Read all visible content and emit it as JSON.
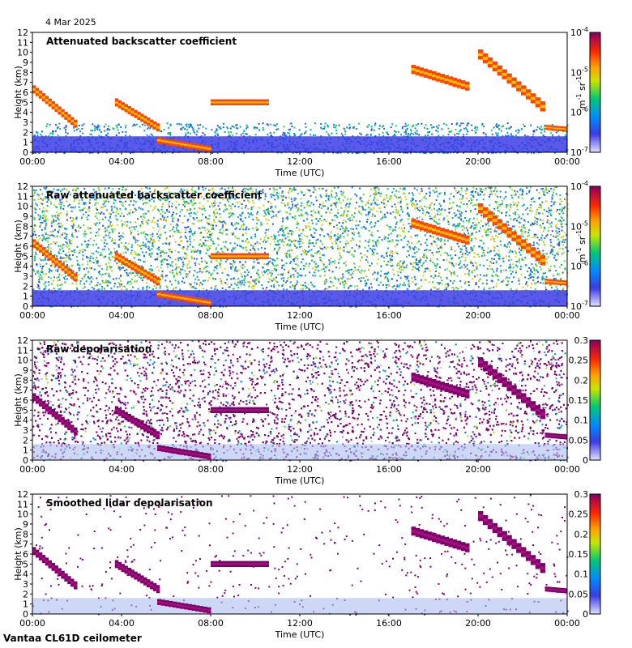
{
  "header": {
    "date": "4 Mar 2025"
  },
  "footer": {
    "station": "Vantaa CL61D ceilometer"
  },
  "chart_data": [
    {
      "type": "heatmap",
      "title": "Attenuated backscatter coefficient",
      "xlabel": "Time (UTC)",
      "ylabel": "Height (km)",
      "xticks": [
        "00:00",
        "04:00",
        "08:00",
        "12:00",
        "16:00",
        "20:00",
        "00:00"
      ],
      "yticks": [
        0,
        1,
        2,
        3,
        4,
        5,
        6,
        7,
        8,
        9,
        10,
        11,
        12
      ],
      "ylim": [
        0,
        12
      ],
      "colorbar": {
        "scale": "log",
        "labels": [
          "10-7",
          "10-6",
          "10-5",
          "10-4"
        ],
        "exponents": [
          -7,
          -6,
          -5,
          -4
        ],
        "unit_base": "m",
        "unit_exp1": "-1",
        "unit_mid": " sr",
        "unit_exp2": "-1"
      },
      "noise": "low",
      "bands": [
        {
          "name": "boundary-layer aerosol",
          "t0": 0,
          "t1": 24,
          "h0": 0,
          "h1": 1.6,
          "level": 0.15
        }
      ],
      "features": [
        {
          "t0": 0.0,
          "t1": 2.0,
          "h_start": 6.3,
          "h_end": 2.6,
          "thick": 0.8
        },
        {
          "t0": 3.7,
          "t1": 5.7,
          "h_start": 5.0,
          "h_end": 2.3,
          "thick": 0.8
        },
        {
          "t0": 5.6,
          "t1": 8.0,
          "h_start": 1.2,
          "h_end": 0.3,
          "thick": 0.6
        },
        {
          "t0": 8.0,
          "t1": 10.6,
          "h_start": 5.0,
          "h_end": 5.0,
          "thick": 0.6
        },
        {
          "t0": 17.0,
          "t1": 19.6,
          "h_start": 8.3,
          "h_end": 6.5,
          "thick": 0.9
        },
        {
          "t0": 20.0,
          "t1": 23.0,
          "h_start": 9.8,
          "h_end": 4.2,
          "thick": 1.0
        },
        {
          "t0": 23.0,
          "t1": 24.0,
          "h_start": 2.5,
          "h_end": 2.3,
          "thick": 0.5
        }
      ]
    },
    {
      "type": "heatmap",
      "title": "Raw attenuated backscatter coefficient",
      "xlabel": "Time (UTC)",
      "ylabel": "Height (km)",
      "xticks": [
        "00:00",
        "04:00",
        "08:00",
        "12:00",
        "16:00",
        "20:00",
        "00:00"
      ],
      "yticks": [
        0,
        1,
        2,
        3,
        4,
        5,
        6,
        7,
        8,
        9,
        10,
        11,
        12
      ],
      "ylim": [
        0,
        12
      ],
      "colorbar": {
        "scale": "log",
        "labels": [
          "10-7",
          "10-6",
          "10-5",
          "10-4"
        ],
        "exponents": [
          -7,
          -6,
          -5,
          -4
        ],
        "unit_base": "m",
        "unit_exp1": "-1",
        "unit_mid": " sr",
        "unit_exp2": "-1"
      },
      "noise": "high",
      "bands": [
        {
          "name": "boundary-layer aerosol",
          "t0": 0,
          "t1": 24,
          "h0": 0,
          "h1": 1.6,
          "level": 0.15
        }
      ],
      "features": [
        {
          "t0": 0.0,
          "t1": 2.0,
          "h_start": 6.3,
          "h_end": 2.6,
          "thick": 0.8
        },
        {
          "t0": 3.7,
          "t1": 5.7,
          "h_start": 5.0,
          "h_end": 2.3,
          "thick": 0.8
        },
        {
          "t0": 5.6,
          "t1": 8.0,
          "h_start": 1.2,
          "h_end": 0.3,
          "thick": 0.6
        },
        {
          "t0": 8.0,
          "t1": 10.6,
          "h_start": 5.0,
          "h_end": 5.0,
          "thick": 0.6
        },
        {
          "t0": 17.0,
          "t1": 19.6,
          "h_start": 8.3,
          "h_end": 6.5,
          "thick": 0.9
        },
        {
          "t0": 20.0,
          "t1": 23.0,
          "h_start": 9.8,
          "h_end": 4.2,
          "thick": 1.0
        },
        {
          "t0": 23.0,
          "t1": 24.0,
          "h_start": 2.5,
          "h_end": 2.3,
          "thick": 0.5
        }
      ]
    },
    {
      "type": "heatmap",
      "title": "Raw depolarisation",
      "xlabel": "Time (UTC)",
      "ylabel": "Height (km)",
      "xticks": [
        "00:00",
        "04:00",
        "08:00",
        "12:00",
        "16:00",
        "20:00",
        "00:00"
      ],
      "yticks": [
        0,
        1,
        2,
        3,
        4,
        5,
        6,
        7,
        8,
        9,
        10,
        11,
        12
      ],
      "ylim": [
        0,
        12
      ],
      "colorbar": {
        "scale": "linear",
        "range": [
          0,
          0.3
        ],
        "labels": [
          "0",
          "0.05",
          "0.1",
          "0.15",
          "0.2",
          "0.25",
          "0.3"
        ]
      },
      "noise": "depol",
      "features": [
        {
          "t0": 0.0,
          "t1": 2.0,
          "h_start": 6.3,
          "h_end": 2.6,
          "thick": 0.8
        },
        {
          "t0": 3.7,
          "t1": 5.7,
          "h_start": 5.0,
          "h_end": 2.3,
          "thick": 0.8
        },
        {
          "t0": 5.6,
          "t1": 8.0,
          "h_start": 1.2,
          "h_end": 0.3,
          "thick": 0.6
        },
        {
          "t0": 8.0,
          "t1": 10.6,
          "h_start": 5.0,
          "h_end": 5.0,
          "thick": 0.6
        },
        {
          "t0": 17.0,
          "t1": 19.6,
          "h_start": 8.3,
          "h_end": 6.5,
          "thick": 0.9
        },
        {
          "t0": 20.0,
          "t1": 23.0,
          "h_start": 9.8,
          "h_end": 4.2,
          "thick": 1.0
        },
        {
          "t0": 23.0,
          "t1": 24.0,
          "h_start": 2.5,
          "h_end": 2.3,
          "thick": 0.5
        }
      ]
    },
    {
      "type": "heatmap",
      "title": "Smoothed lidar depolarisation",
      "xlabel": "Time (UTC)",
      "ylabel": "Height (km)",
      "xticks": [
        "00:00",
        "04:00",
        "08:00",
        "12:00",
        "16:00",
        "20:00",
        "00:00"
      ],
      "yticks": [
        0,
        1,
        2,
        3,
        4,
        5,
        6,
        7,
        8,
        9,
        10,
        11,
        12
      ],
      "ylim": [
        0,
        12
      ],
      "colorbar": {
        "scale": "linear",
        "range": [
          0,
          0.3
        ],
        "labels": [
          "0",
          "0.05",
          "0.1",
          "0.15",
          "0.2",
          "0.25",
          "0.3"
        ]
      },
      "noise": "sparse",
      "features": [
        {
          "t0": 0.0,
          "t1": 2.0,
          "h_start": 6.3,
          "h_end": 2.6,
          "thick": 0.8
        },
        {
          "t0": 3.7,
          "t1": 5.7,
          "h_start": 5.0,
          "h_end": 2.3,
          "thick": 0.8
        },
        {
          "t0": 5.6,
          "t1": 8.0,
          "h_start": 1.2,
          "h_end": 0.3,
          "thick": 0.6
        },
        {
          "t0": 8.0,
          "t1": 10.6,
          "h_start": 5.0,
          "h_end": 5.0,
          "thick": 0.6
        },
        {
          "t0": 17.0,
          "t1": 19.6,
          "h_start": 8.3,
          "h_end": 6.5,
          "thick": 0.9
        },
        {
          "t0": 20.0,
          "t1": 23.0,
          "h_start": 9.8,
          "h_end": 4.2,
          "thick": 1.0
        },
        {
          "t0": 23.0,
          "t1": 24.0,
          "h_start": 2.5,
          "h_end": 2.3,
          "thick": 0.5
        }
      ]
    }
  ]
}
